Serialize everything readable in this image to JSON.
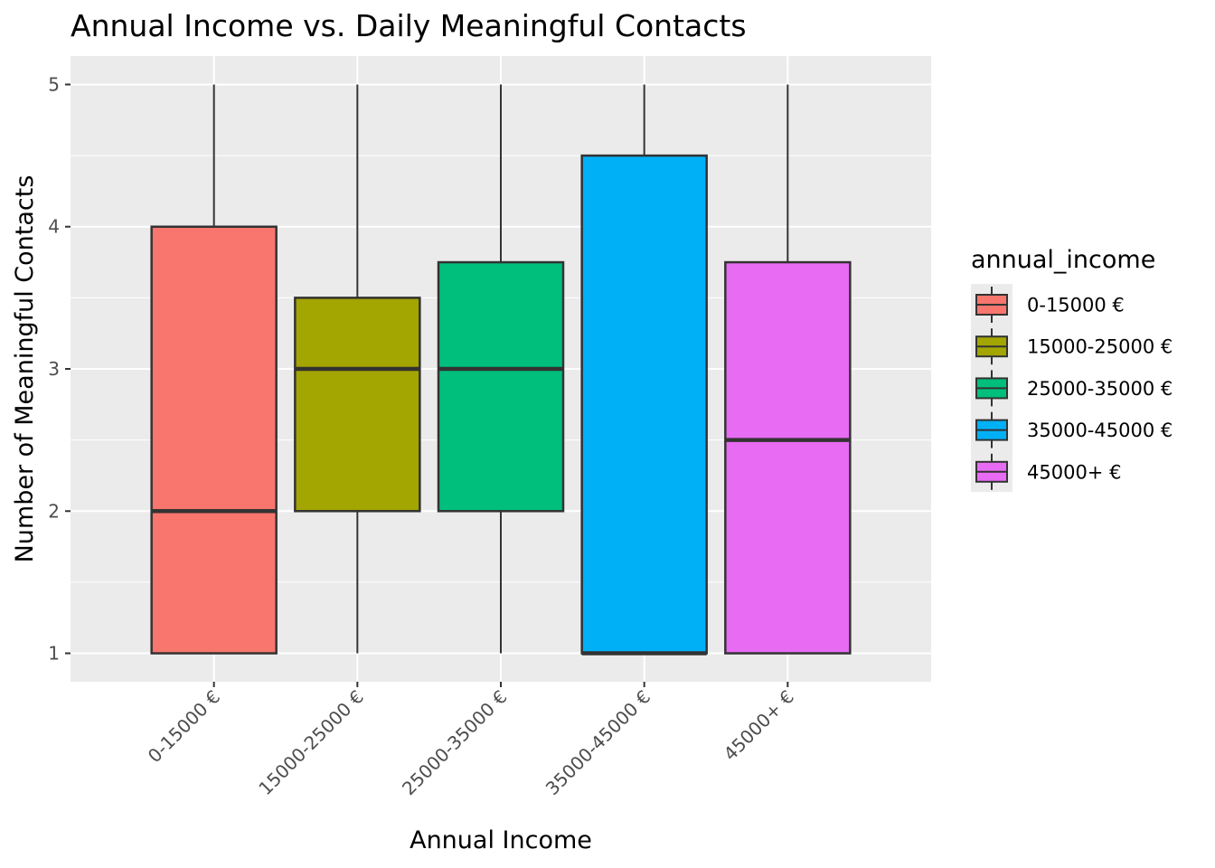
{
  "chart_data": {
    "type": "box",
    "title": "Annual Income vs. Daily Meaningful Contacts",
    "xlabel": "Annual Income",
    "ylabel": "Number of Meaningful Contacts",
    "ylim": [
      0.8,
      5.2
    ],
    "yticks": [
      1,
      2,
      3,
      4,
      5
    ],
    "grid": true,
    "legend_placement": "right",
    "legend_title": "annual_income",
    "categories": [
      "0-15000 €",
      "15000-25000 €",
      "25000-35000 €",
      "35000-45000 €",
      "45000+ €"
    ],
    "series": [
      {
        "name": "0-15000 €",
        "color": "#F8766D",
        "min": 1,
        "q1": 1,
        "median": 2,
        "q3": 4,
        "max": 5
      },
      {
        "name": "15000-25000 €",
        "color": "#A3A500",
        "min": 1,
        "q1": 2,
        "median": 3,
        "q3": 3.5,
        "max": 5
      },
      {
        "name": "25000-35000 €",
        "color": "#00BF7D",
        "min": 1,
        "q1": 2,
        "median": 3,
        "q3": 3.75,
        "max": 5
      },
      {
        "name": "35000-45000 €",
        "color": "#00B0F6",
        "min": 1,
        "q1": 1,
        "median": 1,
        "q3": 4.5,
        "max": 5
      },
      {
        "name": "45000+ €",
        "color": "#E76BF3",
        "min": 1,
        "q1": 1,
        "median": 2.5,
        "q3": 3.75,
        "max": 5
      }
    ]
  },
  "colors": {
    "panel_background": "#EBEBEB",
    "grid": "#FFFFFF",
    "box_outline": "#333333"
  }
}
